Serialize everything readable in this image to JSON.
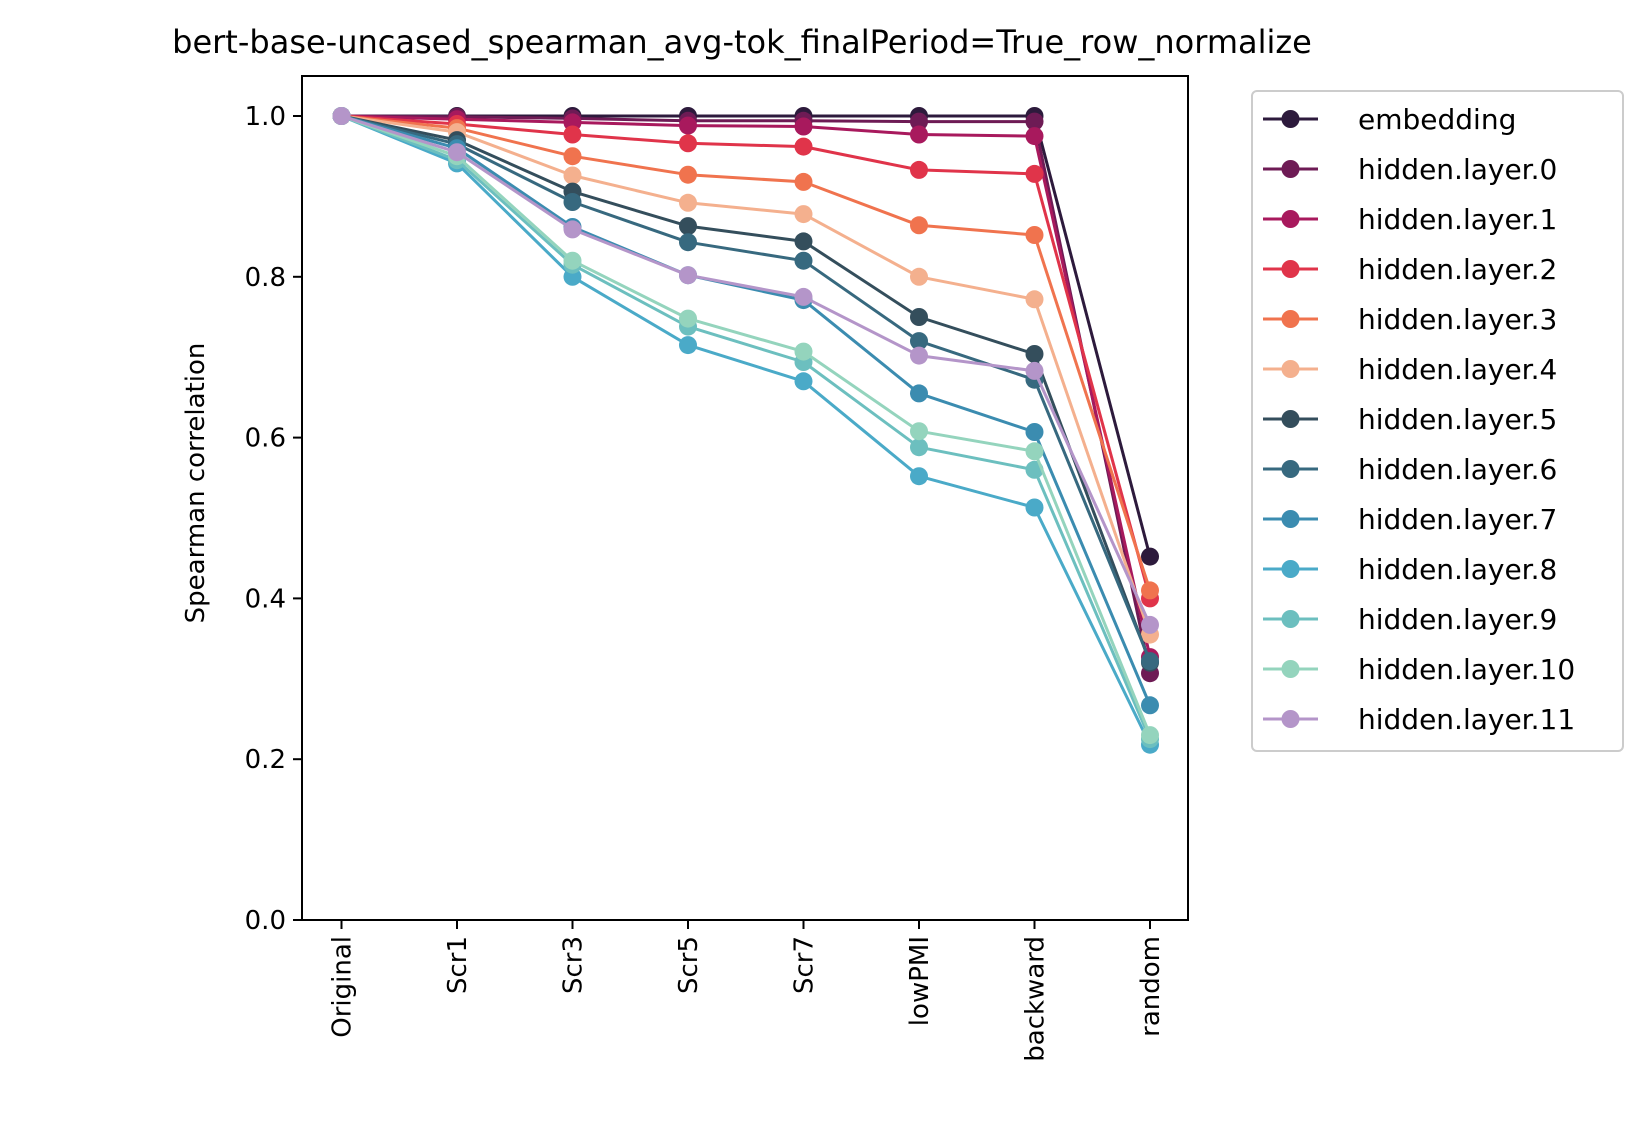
{
  "chart_data": {
    "type": "line",
    "title": "bert-base-uncased_spearman_avg-tok_finalPeriod=True_row_normalize",
    "xlabel": "",
    "ylabel": "Spearman correlation",
    "ylim": [
      0.0,
      1.05
    ],
    "yticks": [
      "0.0",
      "0.2",
      "0.4",
      "0.6",
      "0.8",
      "1.0"
    ],
    "categories": [
      "Original",
      "Scr1",
      "Scr3",
      "Scr5",
      "Scr7",
      "lowPMI",
      "backward",
      "random"
    ],
    "grid": false,
    "legend_position": "outside-right",
    "series": [
      {
        "name": "embedding",
        "color": "#2d1a3c",
        "values": [
          1.0,
          1.0,
          1.0,
          1.0,
          1.0,
          1.0,
          1.0,
          0.452
        ]
      },
      {
        "name": "hidden.layer.0",
        "color": "#6e1b55",
        "values": [
          1.0,
          0.999,
          0.997,
          0.994,
          0.994,
          0.993,
          0.993,
          0.307
        ]
      },
      {
        "name": "hidden.layer.1",
        "color": "#a8195d",
        "values": [
          1.0,
          0.996,
          0.992,
          0.988,
          0.987,
          0.977,
          0.975,
          0.327
        ]
      },
      {
        "name": "hidden.layer.2",
        "color": "#e0344a",
        "values": [
          1.0,
          0.99,
          0.977,
          0.966,
          0.962,
          0.933,
          0.928,
          0.4
        ]
      },
      {
        "name": "hidden.layer.3",
        "color": "#f0734e",
        "values": [
          1.0,
          0.985,
          0.95,
          0.927,
          0.918,
          0.864,
          0.852,
          0.41
        ]
      },
      {
        "name": "hidden.layer.4",
        "color": "#f4b08e",
        "values": [
          1.0,
          0.98,
          0.926,
          0.892,
          0.878,
          0.8,
          0.772,
          0.355
        ]
      },
      {
        "name": "hidden.layer.5",
        "color": "#344e5c",
        "values": [
          1.0,
          0.97,
          0.906,
          0.863,
          0.844,
          0.75,
          0.704,
          0.32
        ]
      },
      {
        "name": "hidden.layer.6",
        "color": "#37697f",
        "values": [
          1.0,
          0.965,
          0.893,
          0.843,
          0.82,
          0.72,
          0.672,
          0.322
        ]
      },
      {
        "name": "hidden.layer.7",
        "color": "#3b8cb0",
        "values": [
          1.0,
          0.96,
          0.862,
          0.802,
          0.771,
          0.655,
          0.607,
          0.267
        ]
      },
      {
        "name": "hidden.layer.8",
        "color": "#4aaac8",
        "values": [
          1.0,
          0.941,
          0.8,
          0.715,
          0.67,
          0.552,
          0.513,
          0.218
        ]
      },
      {
        "name": "hidden.layer.9",
        "color": "#6cbfbf",
        "values": [
          1.0,
          0.945,
          0.815,
          0.738,
          0.694,
          0.588,
          0.56,
          0.225
        ]
      },
      {
        "name": "hidden.layer.10",
        "color": "#94d4bd",
        "values": [
          1.0,
          0.95,
          0.82,
          0.748,
          0.707,
          0.608,
          0.583,
          0.23
        ]
      },
      {
        "name": "hidden.layer.11",
        "color": "#b495c9",
        "values": [
          1.0,
          0.955,
          0.859,
          0.802,
          0.775,
          0.702,
          0.683,
          0.367
        ]
      }
    ]
  }
}
